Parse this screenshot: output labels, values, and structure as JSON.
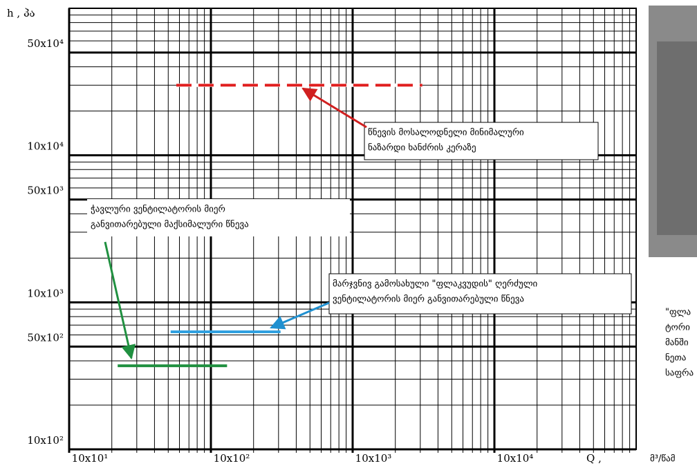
{
  "chart_data": {
    "type": "line",
    "y_label": "h , პა",
    "x_label": "Q ,",
    "x_unit": "მ³/წამ",
    "log_x": true,
    "log_y": true,
    "grid": true,
    "xlim": [
      100,
      1000000
    ],
    "ylim": [
      1000,
      1000000
    ],
    "xticks": [
      {
        "value": 100,
        "label": "10x10¹"
      },
      {
        "value": 1000,
        "label": "10x10²"
      },
      {
        "value": 10000,
        "label": "10x10³"
      },
      {
        "value": 100000,
        "label": "10x10⁴"
      }
    ],
    "yticks": [
      {
        "value": 1000,
        "label": "10x10²"
      },
      {
        "value": 5000,
        "label": "50x10²"
      },
      {
        "value": 10000,
        "label": "10x10³"
      },
      {
        "value": 50000,
        "label": "50x10³"
      },
      {
        "value": 100000,
        "label": "10x10⁴"
      },
      {
        "value": 500000,
        "label": "50x10⁴"
      }
    ],
    "x_minor_ticks": [
      200,
      300,
      400,
      500,
      600,
      700,
      800,
      900,
      2000,
      3000,
      4000,
      5000,
      6000,
      7000,
      8000,
      9000,
      20000,
      30000,
      40000,
      50000,
      60000,
      70000,
      80000,
      90000,
      200000,
      300000,
      400000,
      500000,
      600000,
      700000,
      800000,
      900000
    ],
    "y_minor_ticks": [
      2000,
      3000,
      4000,
      6000,
      7000,
      8000,
      9000,
      20000,
      30000,
      40000,
      60000,
      70000,
      80000,
      90000,
      200000,
      300000,
      400000,
      600000,
      700000,
      800000,
      900000
    ],
    "series": [
      {
        "color": "#e02020",
        "dashed": true,
        "x": [
          570,
          31000
        ],
        "values": [
          300000,
          300000
        ]
      },
      {
        "color": "#30a0e0",
        "dashed": false,
        "x": [
          520,
          3100
        ],
        "values": [
          6300,
          6300
        ]
      },
      {
        "color": "#209040",
        "dashed": false,
        "x": [
          220,
          1300
        ],
        "values": [
          3700,
          3700
        ]
      }
    ],
    "annotations": [
      {
        "lines": [
          "წნევის მოსალოდნელი მინიმალური",
          "ნაზარდი ხანძრის კერაზე"
        ]
      },
      {
        "lines": [
          "ჭავლური ვენტილატორის მიერ",
          "განვითარებული მაქსიმალური წნევა"
        ]
      },
      {
        "lines": [
          "მარჯვნივ გამოსახული \"ფლაკვუდის\" ღერძული",
          "ვენტილატორის მიერ განვითარებული წნევა"
        ]
      }
    ],
    "side_text": [
      "\"ფლა",
      "ტორი",
      "მანში",
      "ნეთა",
      "საფრა"
    ]
  }
}
